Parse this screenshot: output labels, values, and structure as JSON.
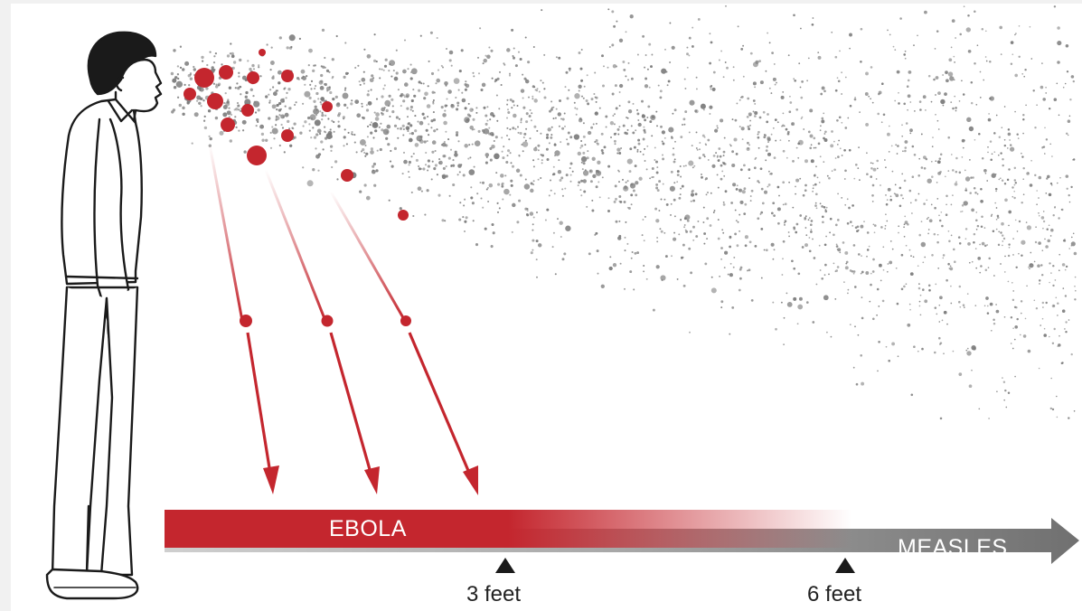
{
  "colors": {
    "ebola_red": "#c4262e",
    "aerosol_gray": "#7a7a7a",
    "bar_gray": "#8c8c8c",
    "ink": "#1a1a1a",
    "background": "#ffffff"
  },
  "labels": {
    "ebola": "EBOLA",
    "measles": "MEASLES"
  },
  "ticks": [
    {
      "label": "3 feet",
      "distance": 3
    },
    {
      "label": "6 feet",
      "distance": 6
    }
  ],
  "icons": {
    "person": "person-profile-icon",
    "droplet": "droplet-icon",
    "arrow": "falling-arrow-icon"
  }
}
